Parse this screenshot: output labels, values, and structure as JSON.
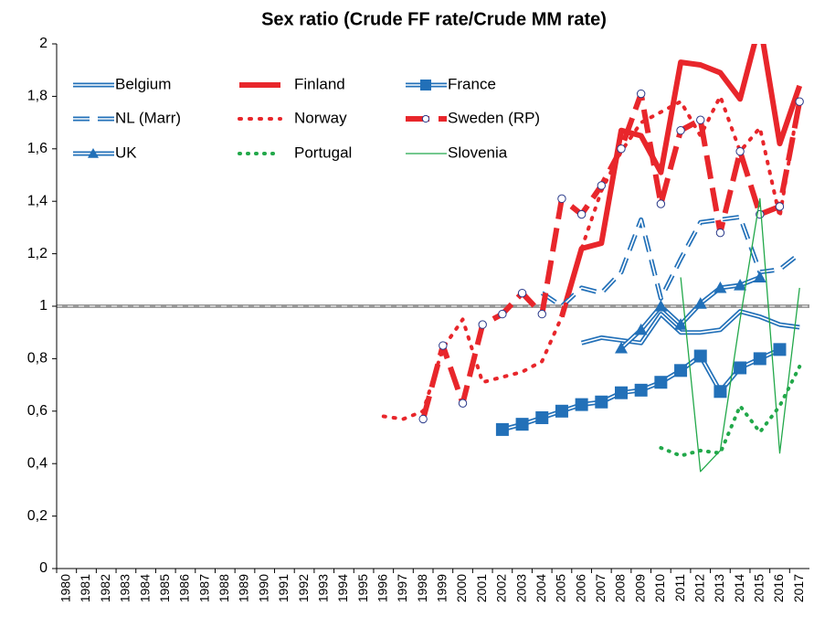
{
  "chart_data": {
    "type": "line",
    "title": "Sex ratio (Crude FF rate/Crude MM rate)",
    "categories": [
      "1980",
      "1981",
      "1982",
      "1983",
      "1984",
      "1985",
      "1986",
      "1987",
      "1988",
      "1989",
      "1990",
      "1991",
      "1992",
      "1993",
      "1994",
      "1995",
      "1996",
      "1997",
      "1998",
      "1999",
      "2000",
      "2001",
      "2002",
      "2003",
      "2004",
      "2005",
      "2006",
      "2007",
      "2008",
      "2009",
      "2010",
      "2011",
      "2012",
      "2013",
      "2014",
      "2015",
      "2016",
      "2017"
    ],
    "ylim": [
      0,
      2
    ],
    "yticks": [
      0,
      {
        "value": 0.2,
        "label": "0,2"
      },
      {
        "value": 0.4,
        "label": "0,4"
      },
      {
        "value": 0.6,
        "label": "0,6"
      },
      {
        "value": 0.8,
        "label": "0,8"
      },
      1,
      {
        "value": 1.2,
        "label": "1,2"
      },
      {
        "value": 1.4,
        "label": "1,4"
      },
      {
        "value": 1.6,
        "label": "1,6"
      },
      {
        "value": 1.8,
        "label": "1,8"
      },
      2
    ],
    "reference_line": 1,
    "legend": "upper left",
    "series": [
      {
        "name": "Belgium",
        "color": "#2270b8",
        "line": "double",
        "marker": null,
        "values": [
          null,
          null,
          null,
          null,
          null,
          null,
          null,
          null,
          null,
          null,
          null,
          null,
          null,
          null,
          null,
          null,
          null,
          null,
          null,
          null,
          null,
          null,
          null,
          null,
          null,
          null,
          0.86,
          0.88,
          0.87,
          0.86,
          0.97,
          0.9,
          0.9,
          0.91,
          0.98,
          0.96,
          0.93,
          0.92
        ]
      },
      {
        "name": "Finland",
        "color": "#e8262b",
        "line": "solid",
        "marker": null,
        "values": [
          null,
          null,
          null,
          null,
          null,
          null,
          null,
          null,
          null,
          null,
          null,
          null,
          null,
          null,
          null,
          null,
          null,
          null,
          null,
          null,
          null,
          null,
          null,
          null,
          null,
          0.96,
          1.22,
          1.24,
          1.67,
          1.65,
          1.51,
          1.93,
          1.92,
          1.89,
          1.79,
          2.08,
          1.62,
          1.84
        ]
      },
      {
        "name": "France",
        "color": "#2270b8",
        "line": "double",
        "marker": "square",
        "values": [
          null,
          null,
          null,
          null,
          null,
          null,
          null,
          null,
          null,
          null,
          null,
          null,
          null,
          null,
          null,
          null,
          null,
          null,
          null,
          null,
          null,
          null,
          0.53,
          0.55,
          0.575,
          0.6,
          0.625,
          0.635,
          0.67,
          0.68,
          0.71,
          0.755,
          0.81,
          0.675,
          0.765,
          0.8,
          0.835,
          null
        ]
      },
      {
        "name": "NL (Marr)",
        "color": "#2270b8",
        "line": "double-dashed",
        "marker": null,
        "values": [
          null,
          null,
          null,
          null,
          null,
          null,
          null,
          null,
          null,
          null,
          null,
          null,
          null,
          null,
          null,
          null,
          null,
          null,
          null,
          null,
          null,
          null,
          null,
          null,
          1.05,
          1.0,
          1.07,
          1.05,
          1.13,
          1.33,
          1.03,
          1.18,
          1.32,
          1.33,
          1.34,
          1.13,
          1.14,
          1.2
        ]
      },
      {
        "name": "Norway",
        "color": "#e8262b",
        "line": "dotted",
        "marker": null,
        "values": [
          null,
          null,
          null,
          null,
          null,
          null,
          null,
          null,
          null,
          null,
          null,
          null,
          null,
          null,
          null,
          null,
          0.58,
          0.57,
          0.6,
          0.84,
          0.95,
          0.71,
          0.73,
          0.75,
          0.79,
          0.96,
          1.22,
          1.44,
          1.59,
          1.7,
          1.74,
          1.78,
          1.65,
          1.8,
          1.59,
          1.68,
          1.34,
          1.8
        ]
      },
      {
        "name": "Sweden (RP)",
        "color": "#e8262b",
        "line": "dashed",
        "marker": "circle",
        "values": [
          null,
          null,
          null,
          null,
          null,
          null,
          null,
          null,
          null,
          null,
          null,
          null,
          null,
          null,
          null,
          null,
          null,
          null,
          0.57,
          0.85,
          0.63,
          0.93,
          0.97,
          1.05,
          0.97,
          1.41,
          1.35,
          1.46,
          1.6,
          1.81,
          1.39,
          1.67,
          1.71,
          1.28,
          1.59,
          1.35,
          1.38,
          1.78
        ]
      },
      {
        "name": "UK",
        "color": "#2270b8",
        "line": "double",
        "marker": "triangle",
        "values": [
          null,
          null,
          null,
          null,
          null,
          null,
          null,
          null,
          null,
          null,
          null,
          null,
          null,
          null,
          null,
          null,
          null,
          null,
          null,
          null,
          null,
          null,
          null,
          null,
          null,
          null,
          null,
          null,
          0.84,
          0.91,
          1.0,
          0.93,
          1.01,
          1.07,
          1.08,
          1.11,
          null,
          null
        ]
      },
      {
        "name": "Portugal",
        "color": "#22a84a",
        "line": "dotted-green",
        "marker": null,
        "values": [
          null,
          null,
          null,
          null,
          null,
          null,
          null,
          null,
          null,
          null,
          null,
          null,
          null,
          null,
          null,
          null,
          null,
          null,
          null,
          null,
          null,
          null,
          null,
          null,
          null,
          null,
          null,
          null,
          null,
          null,
          0.46,
          0.43,
          0.45,
          0.44,
          0.62,
          0.52,
          0.62,
          0.77
        ]
      },
      {
        "name": "Slovenia",
        "color": "#22a84a",
        "line": "thin",
        "marker": null,
        "values": [
          null,
          null,
          null,
          null,
          null,
          null,
          null,
          null,
          null,
          null,
          null,
          null,
          null,
          null,
          null,
          null,
          null,
          null,
          null,
          null,
          null,
          null,
          null,
          null,
          null,
          null,
          null,
          null,
          null,
          null,
          null,
          1.11,
          0.37,
          0.45,
          0.95,
          1.41,
          0.44,
          1.07
        ]
      }
    ]
  }
}
